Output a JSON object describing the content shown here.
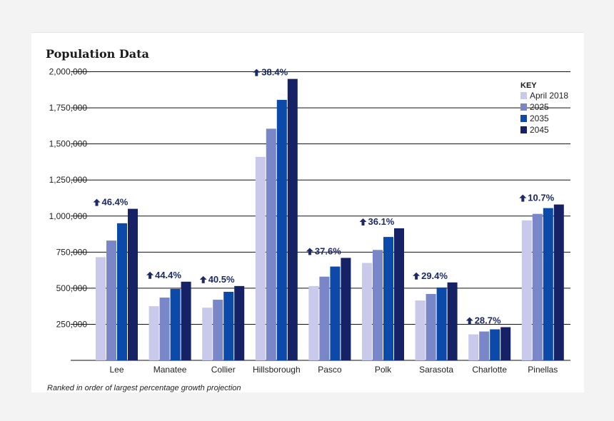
{
  "chart_data": {
    "type": "bar",
    "title": "Population Data",
    "xlabel": "",
    "ylabel": "",
    "ylim": [
      0,
      2000000
    ],
    "yticks": [
      250000,
      500000,
      750000,
      1000000,
      1250000,
      1500000,
      1750000,
      2000000
    ],
    "ytick_labels": [
      "250,000",
      "500,000",
      "750,000",
      "1,000,000",
      "1,250,000",
      "1,500,000",
      "1,750,000",
      "2,000,000"
    ],
    "categories": [
      "Lee",
      "Manatee",
      "Collier",
      "Hillsborough",
      "Pasco",
      "Polk",
      "Sarasota",
      "Charlotte",
      "Pinellas"
    ],
    "series": [
      {
        "name": "April 2018",
        "color": "#c8c9eb",
        "values": [
          715000,
          375000,
          365000,
          1410000,
          515000,
          675000,
          415000,
          180000,
          970000
        ]
      },
      {
        "name": "2025",
        "color": "#7986c7",
        "values": [
          830000,
          435000,
          420000,
          1605000,
          580000,
          765000,
          460000,
          200000,
          1015000
        ]
      },
      {
        "name": "2035",
        "color": "#0b4aa8",
        "values": [
          950000,
          495000,
          475000,
          1805000,
          650000,
          855000,
          505000,
          215000,
          1055000
        ]
      },
      {
        "name": "2045",
        "color": "#152366",
        "values": [
          1050000,
          545000,
          515000,
          1950000,
          710000,
          915000,
          540000,
          230000,
          1080000
        ]
      }
    ],
    "growth_labels": [
      "46.4%",
      "44.4%",
      "40.5%",
      "38.4%",
      "37.6%",
      "36.1%",
      "29.4%",
      "28.7%",
      "10.7%"
    ],
    "legend_title": "KEY",
    "legend_position": "top-right",
    "grid": true,
    "footnote": "Ranked in order of largest percentage growth projection"
  },
  "colors": {
    "gridline": "#111111",
    "arrow": "#1c2b66"
  },
  "icons": {
    "growth": "up-arrow-icon"
  }
}
